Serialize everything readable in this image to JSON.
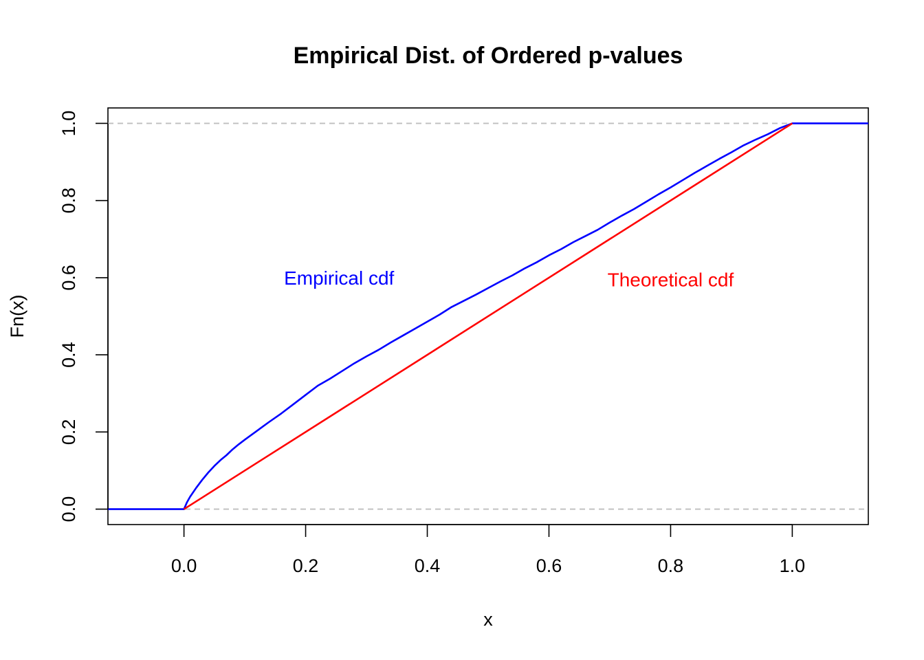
{
  "chart_data": {
    "type": "line",
    "title": "Empirical Dist. of Ordered p-values",
    "xlabel": "x",
    "ylabel": "Fn(x)",
    "xlim": [
      -0.125,
      1.125
    ],
    "ylim": [
      -0.04,
      1.04
    ],
    "x_ticks": [
      "0.0",
      "0.2",
      "0.4",
      "0.6",
      "0.8",
      "1.0"
    ],
    "y_ticks": [
      "0.0",
      "0.2",
      "0.4",
      "0.6",
      "0.8",
      "1.0"
    ],
    "reference_lines": [
      0.0,
      1.0
    ],
    "series": [
      {
        "color": "#0000ff",
        "x": [
          -0.125,
          0.0,
          0.005,
          0.01,
          0.02,
          0.03,
          0.04,
          0.05,
          0.06,
          0.07,
          0.08,
          0.09,
          0.1,
          0.12,
          0.14,
          0.16,
          0.18,
          0.2,
          0.22,
          0.24,
          0.26,
          0.28,
          0.3,
          0.32,
          0.34,
          0.36,
          0.38,
          0.4,
          0.42,
          0.44,
          0.46,
          0.48,
          0.5,
          0.52,
          0.54,
          0.56,
          0.58,
          0.6,
          0.62,
          0.64,
          0.66,
          0.68,
          0.7,
          0.72,
          0.74,
          0.76,
          0.78,
          0.8,
          0.82,
          0.84,
          0.86,
          0.88,
          0.9,
          0.92,
          0.94,
          0.96,
          0.98,
          1.0,
          1.125
        ],
        "y": [
          0.0,
          0.0,
          0.018,
          0.032,
          0.055,
          0.076,
          0.095,
          0.112,
          0.127,
          0.14,
          0.155,
          0.168,
          0.18,
          0.203,
          0.226,
          0.248,
          0.272,
          0.296,
          0.32,
          0.338,
          0.358,
          0.378,
          0.396,
          0.413,
          0.432,
          0.45,
          0.468,
          0.486,
          0.504,
          0.524,
          0.54,
          0.556,
          0.573,
          0.59,
          0.606,
          0.624,
          0.64,
          0.658,
          0.674,
          0.692,
          0.708,
          0.724,
          0.743,
          0.761,
          0.778,
          0.797,
          0.816,
          0.834,
          0.853,
          0.872,
          0.89,
          0.908,
          0.925,
          0.943,
          0.958,
          0.972,
          0.988,
          1.0,
          1.0
        ]
      },
      {
        "color": "#ff0000",
        "x": [
          0.0,
          1.0
        ],
        "y": [
          0.0,
          1.0
        ]
      }
    ],
    "annotations": [
      {
        "text": "Empirical cdf",
        "x": 0.255,
        "y": 0.6,
        "color": "#0000ff"
      },
      {
        "text": "Theoretical cdf",
        "x": 0.8,
        "y": 0.595,
        "color": "#ff0000"
      }
    ]
  }
}
